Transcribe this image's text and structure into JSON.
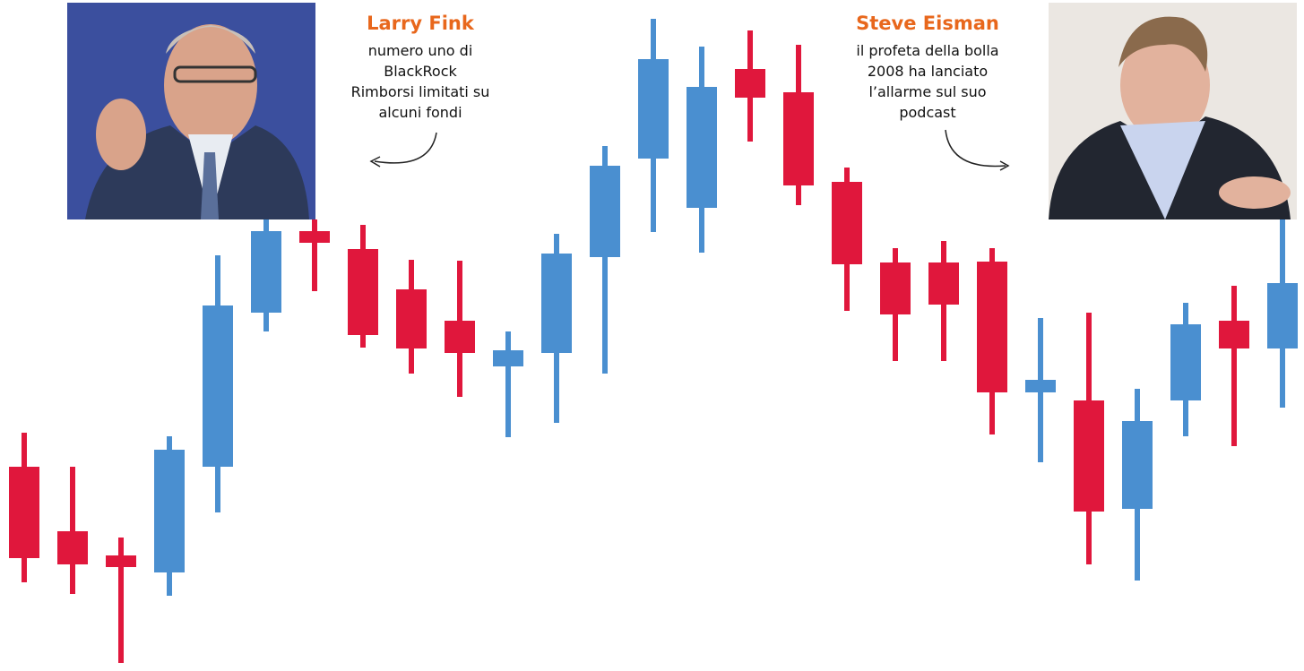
{
  "chart_data": {
    "type": "candlestick",
    "ylim": [
      0,
      749
    ],
    "up_color": "#4a8fd0",
    "down_color": "#e0173c",
    "open": [
      228,
      156,
      129,
      110,
      228,
      400,
      491,
      471,
      426,
      391,
      340,
      355,
      462,
      572,
      517,
      672,
      646,
      546,
      456,
      456,
      457,
      311,
      302,
      181,
      302,
      391,
      360
    ],
    "high": [
      266,
      228,
      149,
      262,
      464,
      514,
      504,
      498,
      459,
      458,
      379,
      488,
      586,
      728,
      697,
      715,
      699,
      562,
      472,
      480,
      472,
      394,
      400,
      315,
      411,
      430,
      504
    ],
    "low": [
      99,
      86,
      9,
      84,
      177,
      379,
      424,
      361,
      332,
      306,
      261,
      277,
      332,
      490,
      467,
      591,
      520,
      402,
      346,
      346,
      264,
      233,
      119,
      101,
      262,
      251,
      294
    ],
    "close": [
      126,
      119,
      116,
      247,
      408,
      491,
      478,
      375,
      360,
      355,
      358,
      466,
      564,
      683,
      652,
      640,
      542,
      454,
      398,
      409,
      311,
      325,
      178,
      279,
      387,
      360,
      433
    ],
    "annotations": [
      {
        "title": "Larry Fink",
        "lines": [
          "numero uno di",
          "BlackRock",
          "Rimborsi limitati su",
          "alcuni fondi"
        ]
      },
      {
        "title": "Steve Eisman",
        "lines": [
          "il profeta della bolla",
          "2008 ha lanciato",
          "l’allarme sul suo",
          "podcast"
        ]
      }
    ]
  }
}
